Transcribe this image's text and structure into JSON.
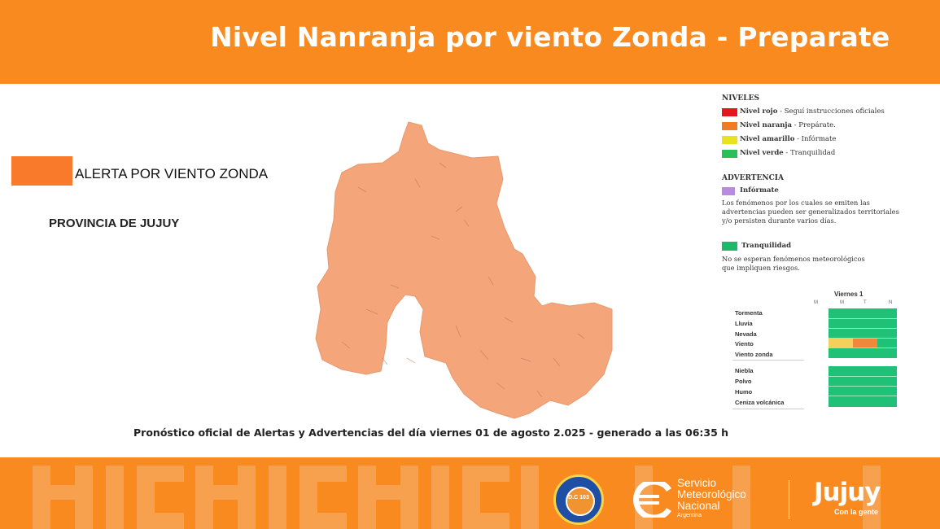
{
  "header": {
    "title": "Nivel Nanranja por viento Zonda - Preparate"
  },
  "map_legend": {
    "alert_label": "ALERTA POR VIENTO ZONDA",
    "alert_color": "#f87a2a",
    "province_label": "PROVINCIA DE JUJUY",
    "map_fill": "#f5a57a"
  },
  "levels": {
    "title": "NIVELES",
    "items": [
      {
        "name": "Nivel rojo",
        "desc": " - Seguí instrucciones oficiales",
        "color": "#e3161b"
      },
      {
        "name": "Nivel naranja",
        "desc": " - Prepárate.",
        "color": "#f07b25"
      },
      {
        "name": "Nivel amarillo",
        "desc": " - Infórmate",
        "color": "#e9e21e"
      },
      {
        "name": "Nivel verde",
        "desc": " - Tranquilidad",
        "color": "#2bbf5a"
      }
    ]
  },
  "advertencia": {
    "title": "ADVERTENCIA",
    "informate": {
      "name": "Infórmate",
      "color": "#b98be0",
      "text": "Los fenómenos por los cuales se emiten las advertencias pueden ser generalizados territoriales y/o persisten durante varios días."
    },
    "tranquilidad": {
      "name": "Tranquilidad",
      "color": "#1fb86a",
      "text": "No se esperan fenómenos meteorológicos que impliquen riesgos."
    }
  },
  "forecast_table": {
    "day": "Viernes 1",
    "columns": [
      "M",
      "M",
      "T",
      "N"
    ],
    "rows_group1": [
      "Tormenta",
      "Lluvia",
      "Nevada",
      "Viento",
      "Viento zonda"
    ],
    "rows_group2": [
      "Niebla",
      "Polvo",
      "Humo",
      "Ceniza volcánica"
    ],
    "cell_green": "#1fc176",
    "viento_cells": [
      "",
      "yellow",
      "orange",
      ""
    ],
    "yellow": "#f3cf5c",
    "orange": "#f0873a"
  },
  "footer_note": "Pronóstico oficial de Alertas y Advertencias del día viernes 01 de agosto 2.025 - generado a las 06:35 h",
  "footer": {
    "dc_label": "D.C 103",
    "smn_name": "Servicio Meteorológico Nacional",
    "smn_line1": "Servicio",
    "smn_line2": "Meteorológico",
    "smn_line3": "Nacional",
    "smn_country": "Argentina",
    "jujuy_logo": "Jujuy",
    "jujuy_tagline": "Con la gente",
    "band_color": "#f98a1f"
  }
}
